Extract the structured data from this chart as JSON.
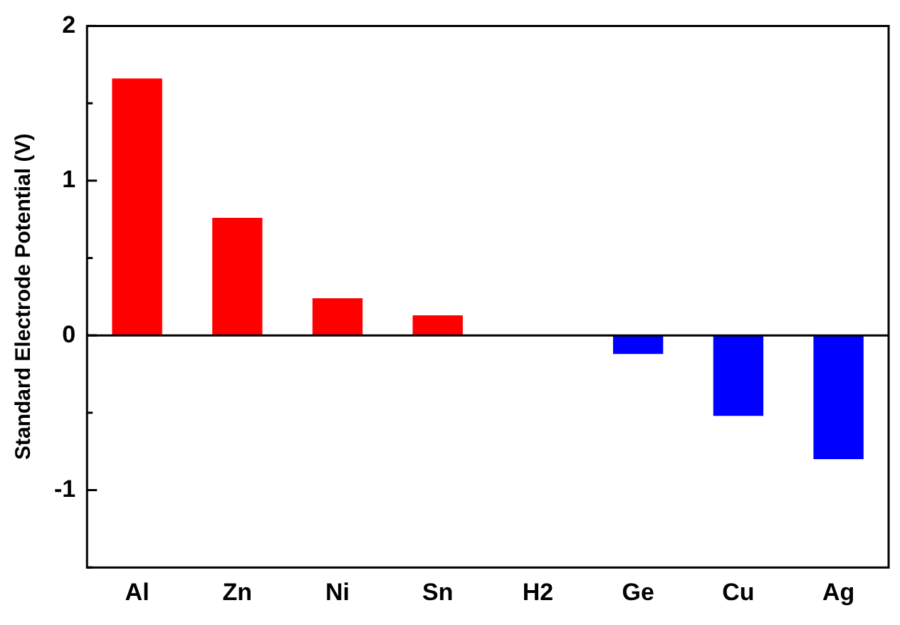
{
  "chart_data": {
    "type": "bar",
    "ylabel": "Standard Electrode Potential (V)",
    "categories": [
      "Al",
      "Zn",
      "Ni",
      "Sn",
      "H2",
      "Ge",
      "Cu",
      "Ag"
    ],
    "values": [
      1.66,
      0.76,
      0.24,
      0.13,
      0,
      -0.12,
      -0.52,
      -0.8
    ],
    "colors": [
      "#ff0000",
      "#ff0000",
      "#ff0000",
      "#ff0000",
      "#ff0000",
      "#0000ff",
      "#0000ff",
      "#0000ff"
    ],
    "ylim": [
      -1.5,
      2
    ],
    "yticks": [
      {
        "value": -1.5,
        "label": null
      },
      -1,
      {
        "value": -0.5,
        "label": null
      },
      0,
      {
        "value": 0.5,
        "label": null
      },
      1,
      {
        "value": 1.5,
        "label": null
      },
      2
    ],
    "ref_lines": [
      {
        "axis": "y",
        "value": 0,
        "color": "#000000"
      }
    ],
    "grid": false,
    "legend": false
  }
}
